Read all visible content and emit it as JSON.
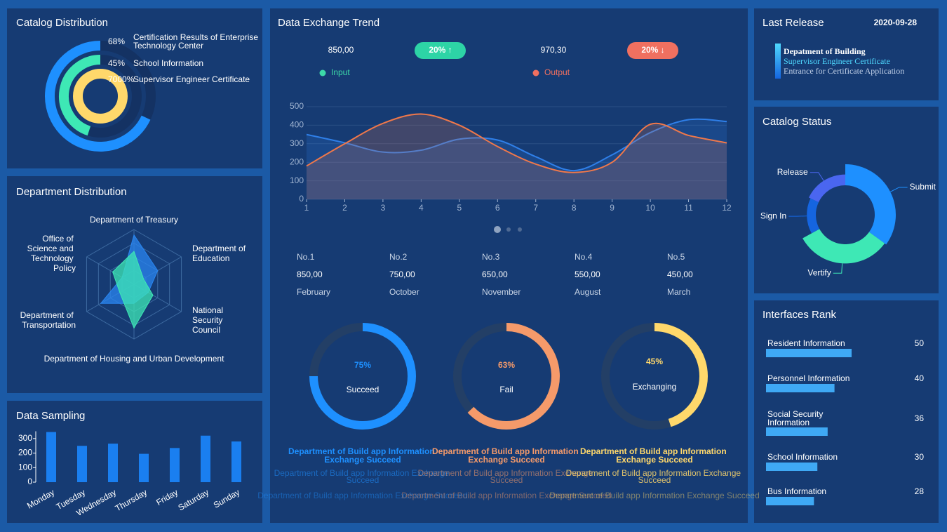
{
  "catalog_distribution": {
    "title": "Catalog Distribution",
    "chart_data": {
      "type": "radial-bar",
      "categories": [
        "Certification Results of Enterprise Technology Center",
        "School Information",
        "Supervisor Engineer Certificate"
      ],
      "values": [
        68,
        45,
        7000
      ],
      "value_labels": [
        "68%",
        "45%",
        "7000%"
      ],
      "colors": [
        "#1e90ff",
        "#3ee8b5",
        "#ffd86b"
      ]
    }
  },
  "department_distribution": {
    "title": "Department Distribution",
    "chart_data": {
      "type": "radar",
      "categories": [
        "Department of Treasury",
        "Department of Education",
        "National Security Council",
        "Department of Housing and Urban Development",
        "Department of Transportation",
        "Office of Science and Technology Policy"
      ],
      "rlim": [
        0,
        100
      ],
      "rticks": [
        25,
        50,
        75,
        100
      ],
      "series": [
        {
          "color": "#2a86f0",
          "values": [
            90,
            50,
            30,
            35,
            70,
            25
          ]
        },
        {
          "color": "#3ee8b5",
          "values": [
            60,
            20,
            40,
            80,
            30,
            45
          ]
        }
      ]
    }
  },
  "data_sampling": {
    "title": "Data Sampling",
    "chart_data": {
      "type": "bar",
      "categories": [
        "Monday",
        "Tuesday",
        "Wednesday",
        "Thursday",
        "Friday",
        "Saturday",
        "Sunday"
      ],
      "values": [
        345,
        250,
        265,
        195,
        235,
        320,
        280
      ],
      "color": "#1a7ff0",
      "ylim": [
        0,
        350
      ],
      "yticks": [
        0,
        100,
        200,
        300
      ]
    }
  },
  "data_exchange_trend": {
    "title": "Data Exchange Trend",
    "summary": [
      {
        "value": "850,00",
        "badge": "20% ↑",
        "badge_color": "#2dd4a6"
      },
      {
        "value": "970,30",
        "badge": "20% ↓",
        "badge_color": "#f07060"
      }
    ],
    "chart_data": {
      "type": "line",
      "x": [
        1,
        2,
        3,
        4,
        5,
        6,
        7,
        8,
        9,
        10,
        11,
        12
      ],
      "xlim": [
        1,
        12
      ],
      "xticks": [
        1,
        2,
        3,
        4,
        5,
        6,
        7,
        8,
        9,
        10,
        11,
        12
      ],
      "ylim": [
        0,
        500
      ],
      "yticks": [
        0,
        100,
        200,
        300,
        400,
        500
      ],
      "grid": true,
      "series": [
        {
          "name": "Input",
          "color": "#2f7fe8",
          "legend_color": "#3dd9a8",
          "values": [
            350,
            305,
            255,
            265,
            325,
            320,
            230,
            155,
            240,
            360,
            430,
            420
          ]
        },
        {
          "name": "Output",
          "color": "#f0784a",
          "legend_color": "#f07060",
          "values": [
            180,
            300,
            410,
            460,
            400,
            285,
            190,
            145,
            200,
            405,
            345,
            305
          ]
        }
      ]
    },
    "ranks": [
      {
        "rank": "No.1",
        "value": "850,00",
        "month": "February"
      },
      {
        "rank": "No.2",
        "value": "750,00",
        "month": "October"
      },
      {
        "rank": "No.3",
        "value": "650,00",
        "month": "November"
      },
      {
        "rank": "No.4",
        "value": "550,00",
        "month": "August"
      },
      {
        "rank": "No.5",
        "value": "450,00",
        "month": "March"
      }
    ],
    "gauges": {
      "chart_data": {
        "type": "gauge",
        "categories": [
          "Succeed",
          "Fail",
          "Exchanging"
        ],
        "values": [
          75,
          63,
          45
        ],
        "value_labels": [
          "75%",
          "63%",
          "45%"
        ],
        "colors": [
          "#1e90ff",
          "#f59a6a",
          "#ffd86b"
        ]
      },
      "captions": [
        [
          "Department of Build app Information Exchange Succeed",
          "Department of Build app Information Exchange Succeed",
          "Department of Build app Information Exchange Succeed"
        ],
        [
          "Department of Build app Information Exchange Succeed",
          "Department of Build app Information Exchange Succeed",
          "Department of Build app Information Exchange Succeed"
        ],
        [
          "Department of Build app Information Exchange Succeed",
          "Department of Build app Information Exchange Succeed",
          "Department of Build app Information Exchange Succeed"
        ]
      ]
    }
  },
  "last_release": {
    "title": "Last Release",
    "date": "2020-09-28",
    "department": "Depatment of Building",
    "certificate": "Supervisor Engineer Certificate",
    "entrance": "Entrance for Certificate Application"
  },
  "catalog_status": {
    "title": "Catalog Status",
    "chart_data": {
      "type": "rose-donut",
      "categories": [
        "Submit",
        "Vertify",
        "Sign In",
        "Release"
      ],
      "values": [
        35,
        32,
        15,
        18
      ],
      "colors": [
        "#1e90ff",
        "#3ee8b5",
        "#1565e0",
        "#4a66f0"
      ]
    }
  },
  "interfaces_rank": {
    "title": "Interfaces Rank",
    "chart_data": {
      "type": "hbar",
      "categories": [
        "Resident Information",
        "Personnel Information",
        "Social Security Information",
        "School Information",
        "Bus Information"
      ],
      "values": [
        50,
        40,
        36,
        30,
        28
      ],
      "xlim": [
        0,
        50
      ],
      "color": "#3fa9f5"
    }
  }
}
